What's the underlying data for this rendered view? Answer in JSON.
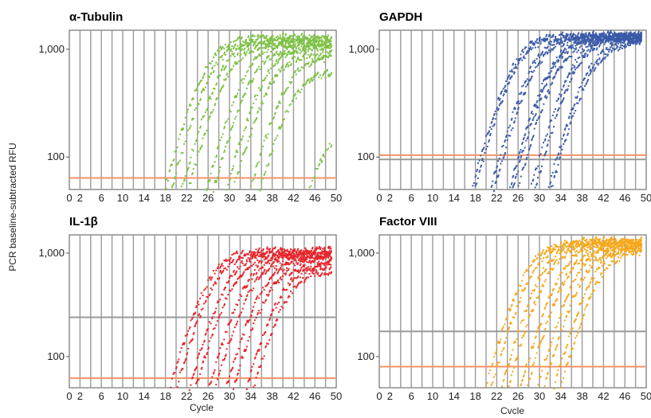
{
  "figure": {
    "ylabel": "PCR baseline-subtracted RFU",
    "xlabel_left": "Cycle",
    "xlabel_right": "Cvcle"
  },
  "chart_data": [
    {
      "type": "line",
      "title": "α-Tubulin",
      "xlabel": "",
      "ylabel": "PCR baseline-subtracted RFU",
      "x_ticks": [
        "0",
        "2",
        "6",
        "10",
        "14",
        "18",
        "22",
        "26",
        "30",
        "34",
        "38",
        "42",
        "46",
        "50"
      ],
      "y_ticks": [
        "1,000",
        "100"
      ],
      "xlim": [
        0,
        50
      ],
      "ylim": [
        50,
        1500
      ],
      "y_scale": "log",
      "grid": true,
      "series_color": "#7dc242",
      "threshold": 64,
      "threshold_color": "#f4926a",
      "secondary_line": null,
      "curves": [
        {
          "ct": 19,
          "plateau": 1280
        },
        {
          "ct": 20,
          "plateau": 1180
        },
        {
          "ct": 22,
          "plateau": 1220
        },
        {
          "ct": 23,
          "plateau": 1100
        },
        {
          "ct": 26.5,
          "plateau": 1150
        },
        {
          "ct": 27.5,
          "plateau": 1000
        },
        {
          "ct": 30,
          "plateau": 1050
        },
        {
          "ct": 31,
          "plateau": 900
        },
        {
          "ct": 34,
          "plateau": 850
        },
        {
          "ct": 35,
          "plateau": 620
        },
        {
          "ct": 41,
          "plateau": 200
        }
      ]
    },
    {
      "type": "line",
      "title": "GAPDH",
      "xlabel": "",
      "ylabel": "",
      "x_ticks": [
        "0",
        "2",
        "6",
        "10",
        "14",
        "18",
        "22",
        "26",
        "30",
        "34",
        "38",
        "42",
        "46",
        "50"
      ],
      "y_ticks": [
        "1,000",
        "100"
      ],
      "xlim": [
        0,
        50
      ],
      "ylim": [
        50,
        1500
      ],
      "y_scale": "log",
      "grid": true,
      "series_color": "#3a5aa8",
      "threshold": 104,
      "threshold_color": "#f4926a",
      "secondary_line": 95,
      "curves": [
        {
          "ct": 18.5,
          "plateau": 1350
        },
        {
          "ct": 19,
          "plateau": 1300
        },
        {
          "ct": 22,
          "plateau": 1320
        },
        {
          "ct": 22.5,
          "plateau": 1250
        },
        {
          "ct": 25.5,
          "plateau": 1300
        },
        {
          "ct": 26,
          "plateau": 1280
        },
        {
          "ct": 26.8,
          "plateau": 1200
        },
        {
          "ct": 29.5,
          "plateau": 1300
        },
        {
          "ct": 30.2,
          "plateau": 1250
        },
        {
          "ct": 32.5,
          "plateau": 1200
        },
        {
          "ct": 33,
          "plateau": 1150
        }
      ]
    },
    {
      "type": "line",
      "title": "IL-1β",
      "xlabel": "Cycle",
      "ylabel": "",
      "x_ticks": [
        "0",
        "2",
        "6",
        "10",
        "14",
        "18",
        "22",
        "26",
        "30",
        "34",
        "38",
        "42",
        "46",
        "50"
      ],
      "y_ticks": [
        "1,000",
        "100"
      ],
      "xlim": [
        0,
        50
      ],
      "ylim": [
        50,
        1500
      ],
      "y_scale": "log",
      "grid": true,
      "series_color": "#e8242b",
      "threshold": 62,
      "threshold_color": "#f4926a",
      "secondary_line": 240,
      "curves": [
        {
          "ct": 19.5,
          "plateau": 1050
        },
        {
          "ct": 20.5,
          "plateau": 980
        },
        {
          "ct": 23,
          "plateau": 1000
        },
        {
          "ct": 24,
          "plateau": 930
        },
        {
          "ct": 26.5,
          "plateau": 950
        },
        {
          "ct": 27.5,
          "plateau": 880
        },
        {
          "ct": 29.5,
          "plateau": 850
        },
        {
          "ct": 30.5,
          "plateau": 760
        },
        {
          "ct": 33,
          "plateau": 750
        },
        {
          "ct": 34,
          "plateau": 680
        }
      ]
    },
    {
      "type": "line",
      "title": "Factor VIII",
      "xlabel": "Cvcle",
      "ylabel": "",
      "x_ticks": [
        "0",
        "2",
        "6",
        "10",
        "14",
        "18",
        "22",
        "26",
        "30",
        "34",
        "38",
        "42",
        "46",
        "50"
      ],
      "y_ticks": [
        "1,000",
        "100"
      ],
      "xlim": [
        0,
        50
      ],
      "ylim": [
        50,
        1500
      ],
      "y_scale": "log",
      "grid": true,
      "series_color": "#f7a81b",
      "threshold": 80,
      "threshold_color": "#f4926a",
      "secondary_line": 175,
      "curves": [
        {
          "ct": 21,
          "plateau": 1300
        },
        {
          "ct": 22,
          "plateau": 1250
        },
        {
          "ct": 24,
          "plateau": 1280
        },
        {
          "ct": 25,
          "plateau": 1200
        },
        {
          "ct": 27.5,
          "plateau": 1250
        },
        {
          "ct": 28.5,
          "plateau": 1150
        },
        {
          "ct": 30.5,
          "plateau": 1200
        },
        {
          "ct": 31.5,
          "plateau": 1100
        },
        {
          "ct": 33.5,
          "plateau": 1150
        },
        {
          "ct": 34.5,
          "plateau": 1050
        }
      ]
    }
  ]
}
